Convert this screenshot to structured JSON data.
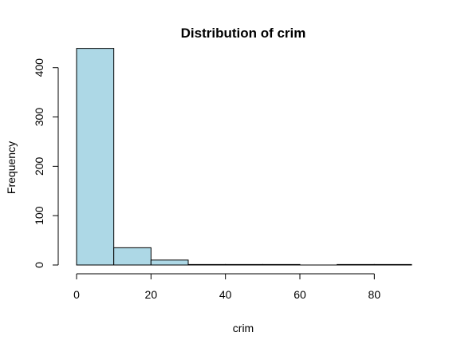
{
  "chart_data": {
    "type": "bar",
    "title": "Distribution of crim",
    "xlabel": "crim",
    "ylabel": "Frequency",
    "bin_edges": [
      0,
      10,
      20,
      30,
      40,
      50,
      60,
      70,
      80,
      90
    ],
    "values": [
      439,
      35,
      10,
      1,
      1,
      1,
      0,
      1,
      1
    ],
    "xlim": [
      0,
      90
    ],
    "ylim": [
      0,
      440
    ],
    "x_ticks": [
      0,
      20,
      40,
      60,
      80
    ],
    "y_ticks": [
      0,
      100,
      200,
      300,
      400
    ],
    "bar_color": "#ADD8E6",
    "grid": false,
    "legend": "none"
  }
}
